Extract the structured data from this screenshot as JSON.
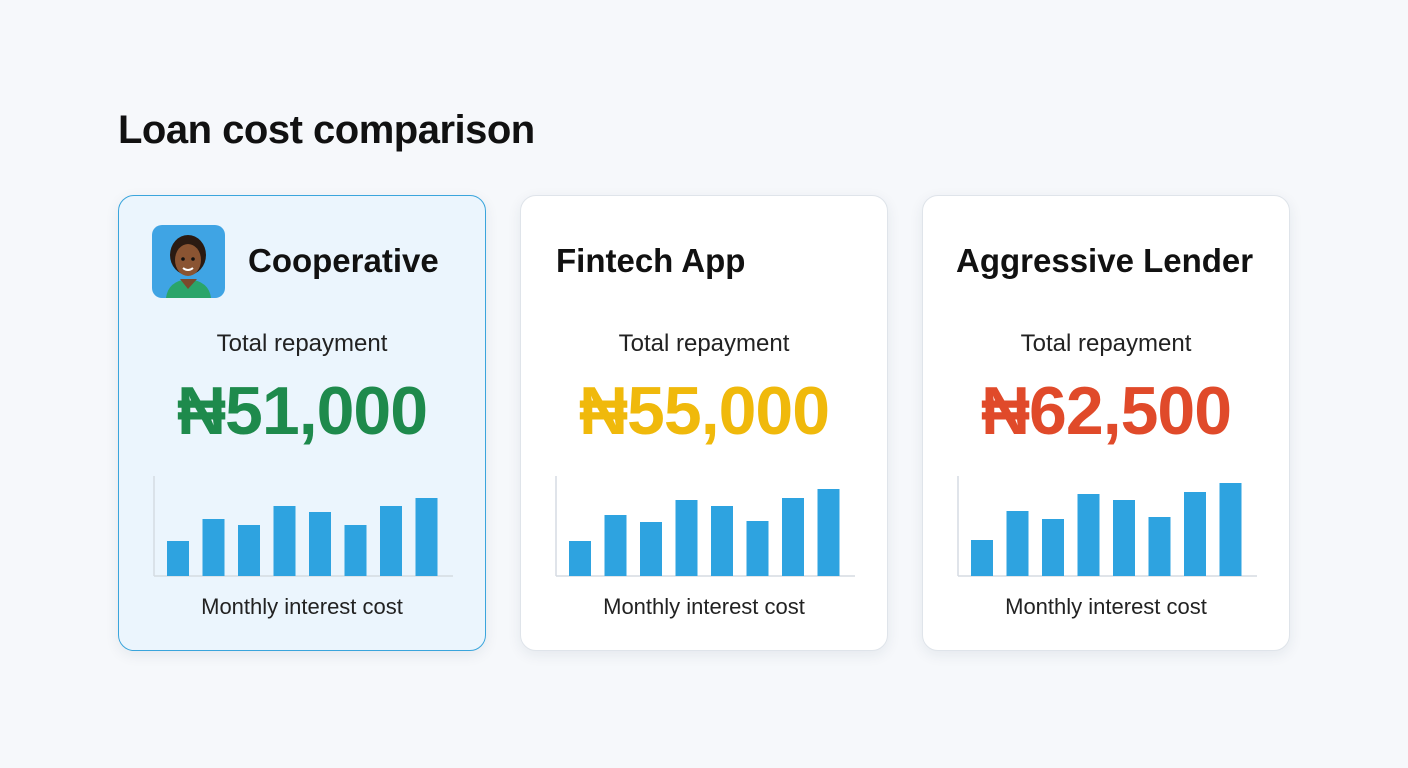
{
  "title": "Loan cost comparison",
  "cards": [
    {
      "name": "Cooperative",
      "label": "Total repayment",
      "amount": "₦51,000",
      "chart": {
        "type": "bar",
        "values": [
          35,
          57,
          51,
          70,
          64,
          51,
          70,
          78
        ],
        "color": "#2ea3e0",
        "ylim": [
          0,
          100
        ],
        "xlabel": "Monthly interest cost"
      }
    },
    {
      "name": "Fintech App",
      "label": "Total repayment",
      "amount": "₦55,000",
      "chart": {
        "type": "bar",
        "values": [
          35,
          61,
          54,
          76,
          70,
          55,
          78,
          87
        ],
        "color": "#2ea3e0",
        "ylim": [
          0,
          100
        ],
        "xlabel": "Monthly interest cost"
      }
    },
    {
      "name": "Aggressive Lender",
      "label": "Total repayment",
      "amount": "₦62,500",
      "chart": {
        "type": "bar",
        "values": [
          36,
          65,
          57,
          82,
          76,
          59,
          84,
          93
        ],
        "color": "#2ea3e0",
        "ylim": [
          0,
          100
        ],
        "xlabel": "Monthly interest cost"
      }
    }
  ]
}
